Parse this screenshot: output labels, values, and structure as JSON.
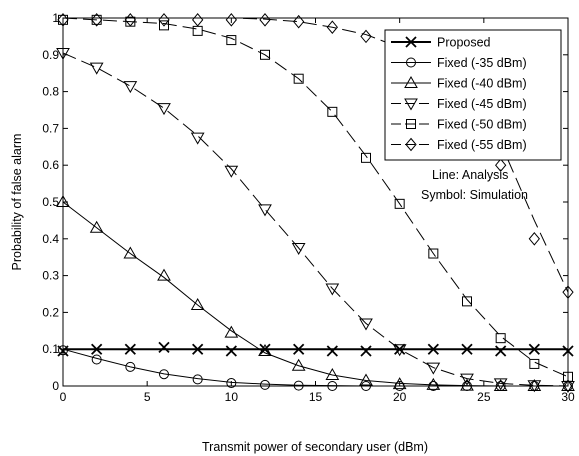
{
  "chart_data": {
    "type": "line",
    "title": "",
    "xlabel": "Transmit power of secondary user (dBm)",
    "ylabel": "Probability of false alarm",
    "xlim": [
      0,
      30
    ],
    "ylim": [
      0,
      1
    ],
    "xticks": [
      "0",
      "5",
      "10",
      "15",
      "20",
      "25",
      "30"
    ],
    "yticks": [
      "0",
      "0.1",
      "0.2",
      "0.3",
      "0.4",
      "0.5",
      "0.6",
      "0.7",
      "0.8",
      "0.9",
      "1"
    ],
    "grid": false,
    "legend_position": "top-right",
    "annotations": [
      "Line: Analysis",
      "Symbol: Simulation"
    ],
    "series": [
      {
        "name": "Proposed",
        "marker": "x",
        "line_style": "solid",
        "x": [
          0,
          2,
          4,
          6,
          8,
          10,
          12,
          14,
          16,
          18,
          20,
          22,
          24,
          26,
          28,
          30
        ],
        "line": [
          0.1,
          0.1,
          0.1,
          0.1,
          0.1,
          0.1,
          0.1,
          0.1,
          0.1,
          0.1,
          0.1,
          0.1,
          0.1,
          0.1,
          0.1,
          0.1
        ],
        "sim": [
          0.095,
          0.1,
          0.1,
          0.105,
          0.1,
          0.095,
          0.1,
          0.1,
          0.095,
          0.095,
          0.1,
          0.1,
          0.1,
          0.095,
          0.1,
          0.095
        ]
      },
      {
        "name": "Fixed (-35 dBm)",
        "marker": "circle",
        "line_style": "solid",
        "x": [
          0,
          2,
          4,
          6,
          8,
          10,
          12,
          14,
          16,
          18,
          20,
          22,
          24,
          26,
          28,
          30
        ],
        "line": [
          0.1,
          0.075,
          0.052,
          0.033,
          0.02,
          0.01,
          0.005,
          0.002,
          0.001,
          0,
          0,
          0,
          0,
          0,
          0,
          0
        ],
        "sim": [
          0.097,
          0.072,
          0.052,
          0.032,
          0.018,
          0.008,
          0.003,
          0.001,
          0,
          0,
          0,
          0,
          0,
          0,
          0,
          0
        ]
      },
      {
        "name": "Fixed (-40 dBm)",
        "marker": "triangle-up",
        "line_style": "solid",
        "x": [
          0,
          2,
          4,
          6,
          8,
          10,
          12,
          14,
          16,
          18,
          20,
          22,
          24,
          26,
          28,
          30
        ],
        "line": [
          0.5,
          0.43,
          0.36,
          0.295,
          0.22,
          0.15,
          0.09,
          0.055,
          0.03,
          0.015,
          0.007,
          0.003,
          0.001,
          0,
          0,
          0
        ],
        "sim": [
          0.5,
          0.43,
          0.36,
          0.3,
          0.22,
          0.145,
          0.095,
          0.055,
          0.03,
          0.015,
          0.005,
          0.003,
          0.001,
          0,
          0,
          0
        ]
      },
      {
        "name": "Fixed (-45 dBm)",
        "marker": "triangle-down",
        "line_style": "dashed",
        "x": [
          0,
          2,
          4,
          6,
          8,
          10,
          12,
          14,
          16,
          18,
          20,
          22,
          24,
          26,
          28,
          30
        ],
        "line": [
          0.905,
          0.865,
          0.815,
          0.755,
          0.68,
          0.59,
          0.48,
          0.375,
          0.265,
          0.17,
          0.1,
          0.05,
          0.02,
          0.007,
          0.002,
          0
        ],
        "sim": [
          0.905,
          0.865,
          0.815,
          0.755,
          0.675,
          0.585,
          0.48,
          0.375,
          0.265,
          0.17,
          0.1,
          0.05,
          0.02,
          0.007,
          0.002,
          0
        ]
      },
      {
        "name": "Fixed (-50 dBm)",
        "marker": "square",
        "line_style": "dashed",
        "x": [
          0,
          2,
          4,
          6,
          8,
          10,
          12,
          14,
          16,
          18,
          20,
          22,
          24,
          26,
          28,
          30
        ],
        "line": [
          1,
          0.995,
          0.99,
          0.985,
          0.97,
          0.945,
          0.9,
          0.835,
          0.745,
          0.625,
          0.495,
          0.36,
          0.235,
          0.135,
          0.065,
          0.025
        ],
        "sim": [
          0.995,
          0.995,
          0.99,
          0.98,
          0.965,
          0.94,
          0.9,
          0.835,
          0.745,
          0.62,
          0.495,
          0.36,
          0.23,
          0.13,
          0.06,
          0.025
        ]
      },
      {
        "name": "Fixed (-55 dBm)",
        "marker": "diamond",
        "line_style": "dashed",
        "x": [
          0,
          2,
          4,
          6,
          8,
          10,
          12,
          14,
          16,
          18,
          20,
          22,
          24,
          26,
          28,
          30
        ],
        "line": [
          1,
          1,
          1,
          1,
          1,
          1,
          0.997,
          0.99,
          0.975,
          0.955,
          0.92,
          0.87,
          0.79,
          0.66,
          0.45,
          0.255
        ],
        "sim": [
          0.995,
          0.995,
          0.995,
          0.995,
          0.995,
          0.995,
          0.995,
          0.99,
          0.975,
          0.95,
          0.92,
          0.86,
          0.78,
          0.6,
          0.4,
          0.255
        ]
      }
    ]
  }
}
